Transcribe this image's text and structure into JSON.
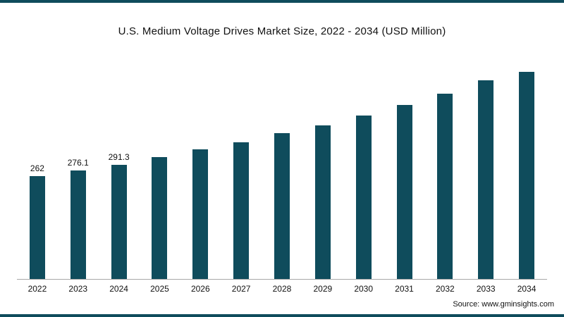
{
  "chart": {
    "title": "U.S. Medium Voltage Drives Market Size, 2022 - 2034 (USD Million)",
    "source": "Source: www.gminsights.com"
  },
  "chart_data": {
    "type": "bar",
    "title": "U.S. Medium Voltage Drives Market Size, 2022 - 2034 (USD Million)",
    "xlabel": "",
    "ylabel": "",
    "categories": [
      "2022",
      "2023",
      "2024",
      "2025",
      "2026",
      "2027",
      "2028",
      "2029",
      "2030",
      "2031",
      "2032",
      "2033",
      "2034"
    ],
    "values": [
      262,
      276.1,
      291.3,
      310,
      330,
      349,
      371,
      391,
      417,
      443,
      472,
      507,
      542
    ],
    "data_labels": [
      "262",
      "276.1",
      "291.3",
      "",
      "",
      "",
      "",
      "",
      "",
      "",
      "",
      "",
      ""
    ],
    "bar_color": "#0f4c5c",
    "ylim": [
      0,
      560
    ],
    "grid": false,
    "legend": false,
    "source": "Source: www.gminsights.com"
  }
}
